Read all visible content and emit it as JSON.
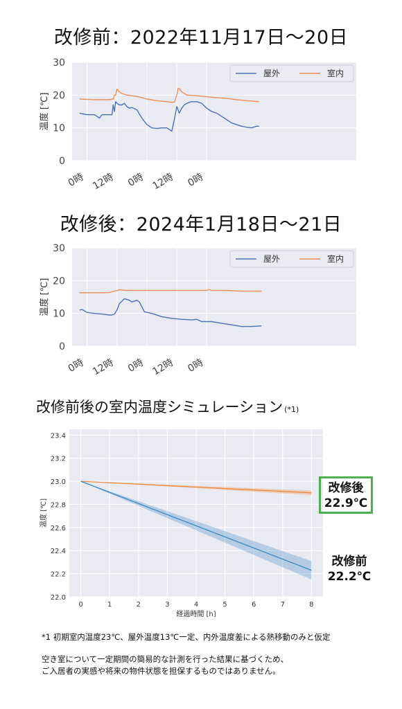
{
  "headings": {
    "before": "改修前：2022年11月17日～20日",
    "after": "改修後：2024年1月18日～21日",
    "simulation": "改修前後の室内温度シミュレーション",
    "simulation_note": "(*1)"
  },
  "colors": {
    "outdoor": "#4c72b0",
    "indoor": "#ee8c57",
    "sim_before": "#3a88c2",
    "sim_after": "#f08a3e",
    "highlight": "#4caf50"
  },
  "callouts": {
    "after_label": "改修後",
    "after_value": "22.9℃",
    "before_label": "改修前",
    "before_value": "22.2℃"
  },
  "footnotes": {
    "note1": "*1 初期室内温度23℃、屋外温度13℃一定、内外温度差による熱移動のみと仮定",
    "disclaimer_line1": "空き室について一定期間の簡易的な計測を行った結果に基づくため、",
    "disclaimer_line2": "ご入居者の実感や将来の物件状態を担保するものではありません。"
  },
  "chart_data": [
    {
      "type": "line",
      "ylabel": "温度 [℃]",
      "ylim": [
        0,
        30
      ],
      "yticks": [
        0,
        10,
        20,
        30
      ],
      "xlim": [
        -6,
        108
      ],
      "xticks": [
        0,
        12,
        24,
        36,
        48
      ],
      "xtick_labels": [
        "0時",
        "12時",
        "0時",
        "12時",
        "0時"
      ],
      "grid": true,
      "legend": "top-right",
      "series": [
        {
          "name": "屋外",
          "x": [
            -3,
            0,
            3,
            5,
            6,
            8,
            10,
            10.5,
            11,
            11.5,
            12,
            13,
            14,
            15,
            16,
            17,
            18,
            20,
            22,
            24,
            26,
            28,
            30,
            32,
            33,
            34,
            35,
            36,
            37,
            38,
            39,
            40,
            42,
            44,
            46,
            48,
            50,
            52,
            54,
            56,
            58,
            60,
            62,
            64,
            66,
            68,
            69
          ],
          "y": [
            14.5,
            14,
            14,
            13,
            14,
            14,
            14,
            17,
            15,
            18,
            17.5,
            17,
            17,
            17.5,
            16.5,
            16,
            16.2,
            15.5,
            13,
            11,
            10,
            9.8,
            10,
            10,
            9.5,
            9,
            12.5,
            16.5,
            14.5,
            16,
            17,
            17.5,
            18,
            18,
            17.5,
            16,
            15,
            14.5,
            13.5,
            12.5,
            11.5,
            11,
            10.5,
            10.2,
            10,
            10.5,
            10.5
          ]
        },
        {
          "name": "室内",
          "x": [
            -3,
            0,
            3,
            6,
            9,
            10.5,
            11,
            11.5,
            12,
            13,
            14,
            16,
            18,
            20,
            24,
            28,
            32,
            34,
            35,
            36,
            36.5,
            37,
            38,
            40,
            44,
            48,
            52,
            56,
            60,
            64,
            69
          ],
          "y": [
            18.8,
            18.7,
            18.6,
            18.6,
            18.6,
            18.8,
            20,
            20,
            21.8,
            21,
            20.5,
            20,
            19.8,
            19.6,
            18.8,
            18.3,
            18,
            17.8,
            17.8,
            20,
            22,
            22,
            21,
            20,
            19.8,
            19.5,
            19.2,
            19,
            18.6,
            18.3,
            18
          ]
        }
      ]
    },
    {
      "type": "line",
      "ylabel": "温度 [℃]",
      "ylim": [
        0,
        30
      ],
      "yticks": [
        0,
        10,
        20,
        30
      ],
      "xlim": [
        -6,
        108
      ],
      "xticks": [
        0,
        12,
        24,
        36,
        48
      ],
      "xtick_labels": [
        "0時",
        "12時",
        "0時",
        "12時",
        "0時"
      ],
      "grid": true,
      "legend": "top-right",
      "series": [
        {
          "name": "屋外",
          "x": [
            -3,
            -2,
            0,
            3,
            6,
            9,
            10,
            11,
            12,
            13,
            15,
            17,
            18,
            20,
            21,
            23,
            26,
            30,
            34,
            38,
            42,
            44,
            46,
            50,
            54,
            58,
            62,
            66,
            70
          ],
          "y": [
            11,
            11.2,
            10.3,
            10,
            9.8,
            9.5,
            9.5,
            9.8,
            11,
            13,
            14.5,
            14,
            13.5,
            14,
            13.5,
            10.5,
            10,
            9,
            8.5,
            8.2,
            8,
            8.2,
            7.5,
            7.5,
            7,
            6.5,
            6,
            6,
            6.2
          ]
        },
        {
          "name": "室内",
          "x": [
            -3,
            0,
            6,
            9,
            11,
            13,
            16,
            20,
            28,
            36,
            44,
            48,
            49,
            50,
            56,
            62,
            70
          ],
          "y": [
            16.3,
            16.3,
            16.3,
            16.4,
            16.8,
            17.2,
            17,
            17,
            17,
            17,
            17,
            17,
            17.3,
            17,
            17,
            16.8,
            16.8
          ]
        }
      ]
    },
    {
      "type": "line",
      "xlabel": "経過時間 [h]",
      "ylabel": "温度 [℃]",
      "xlim": [
        -0.4,
        8.4
      ],
      "ylim": [
        22.0,
        23.45
      ],
      "xticks": [
        0,
        1,
        2,
        3,
        4,
        5,
        6,
        7,
        8
      ],
      "yticks": [
        22.0,
        22.2,
        22.4,
        22.6,
        22.8,
        23.0,
        23.2,
        23.4
      ],
      "grid": true,
      "series": [
        {
          "name": "改修後",
          "x": [
            0,
            8
          ],
          "y": [
            23.0,
            22.9
          ],
          "band_end": [
            22.88,
            22.92
          ]
        },
        {
          "name": "改修前",
          "x": [
            0,
            8
          ],
          "y": [
            23.0,
            22.23
          ],
          "band_end": [
            22.15,
            22.31
          ]
        }
      ]
    }
  ]
}
